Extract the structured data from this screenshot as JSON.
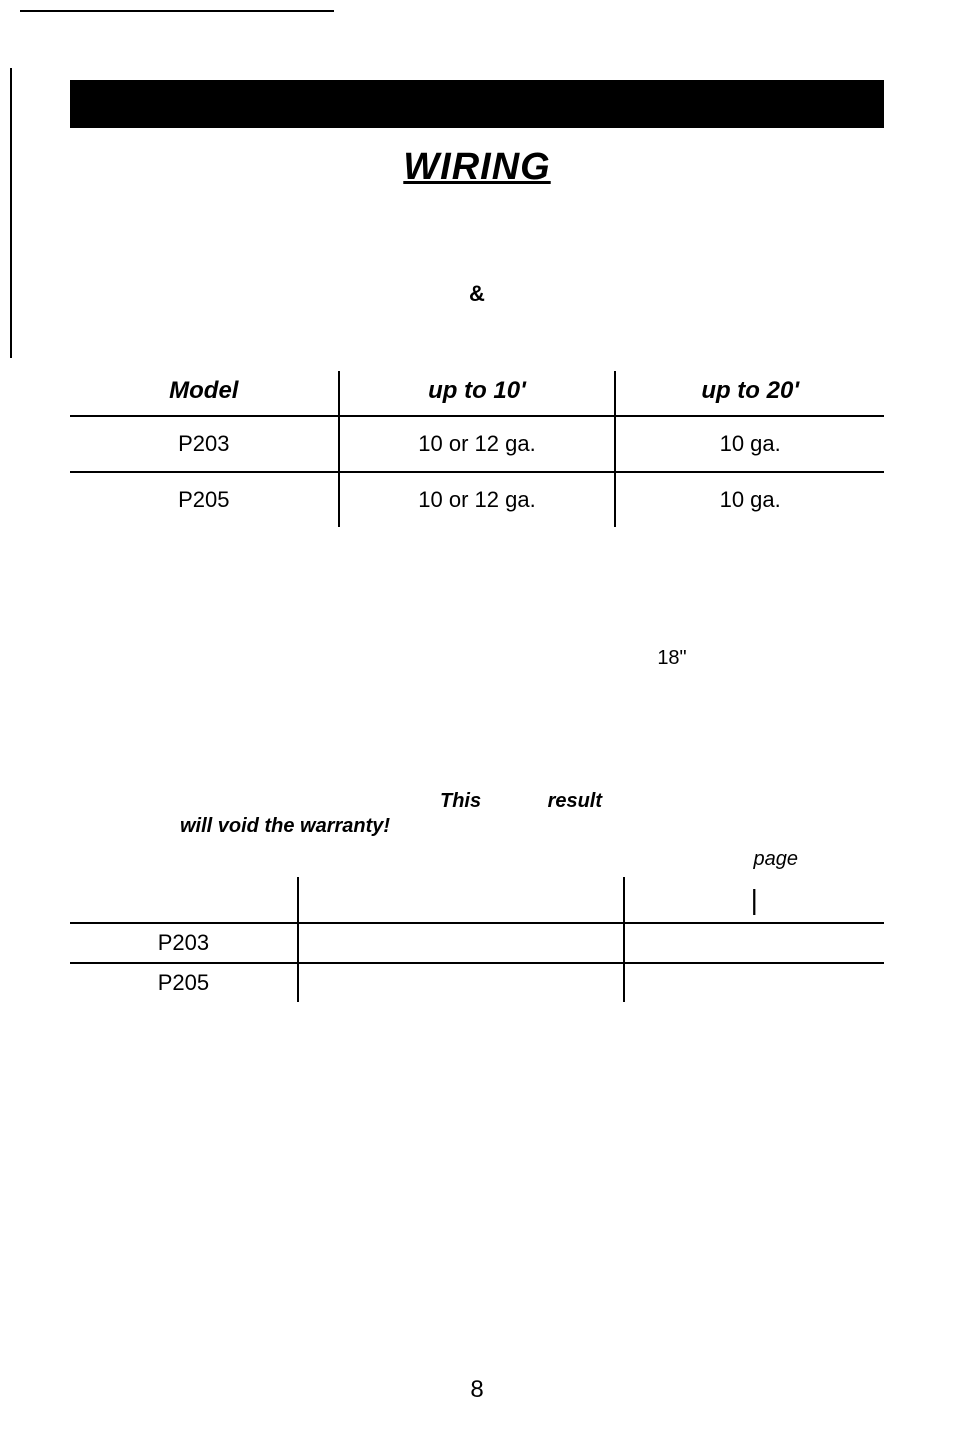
{
  "title": "WIRING",
  "ampersand": "&",
  "table1": {
    "headers": {
      "model": "Model",
      "c2": "up to 10'",
      "c3": "up to 20'"
    },
    "rows": [
      {
        "model": "P203",
        "c2": "10 or 12 ga.",
        "c3": "10 ga."
      },
      {
        "model": "P205",
        "c2": "10 or 12 ga.",
        "c3": "10 ga."
      }
    ]
  },
  "eighteen": "18\"",
  "warranty": {
    "this_word": "This",
    "result_word": "result",
    "void_line": "will void the warranty!",
    "page_word": "page"
  },
  "table2": {
    "pipe": "|",
    "rows": [
      {
        "model": "P203"
      },
      {
        "model": "P205"
      }
    ]
  },
  "page_number": "8",
  "colors": {
    "black": "#000000",
    "white": "#ffffff"
  }
}
